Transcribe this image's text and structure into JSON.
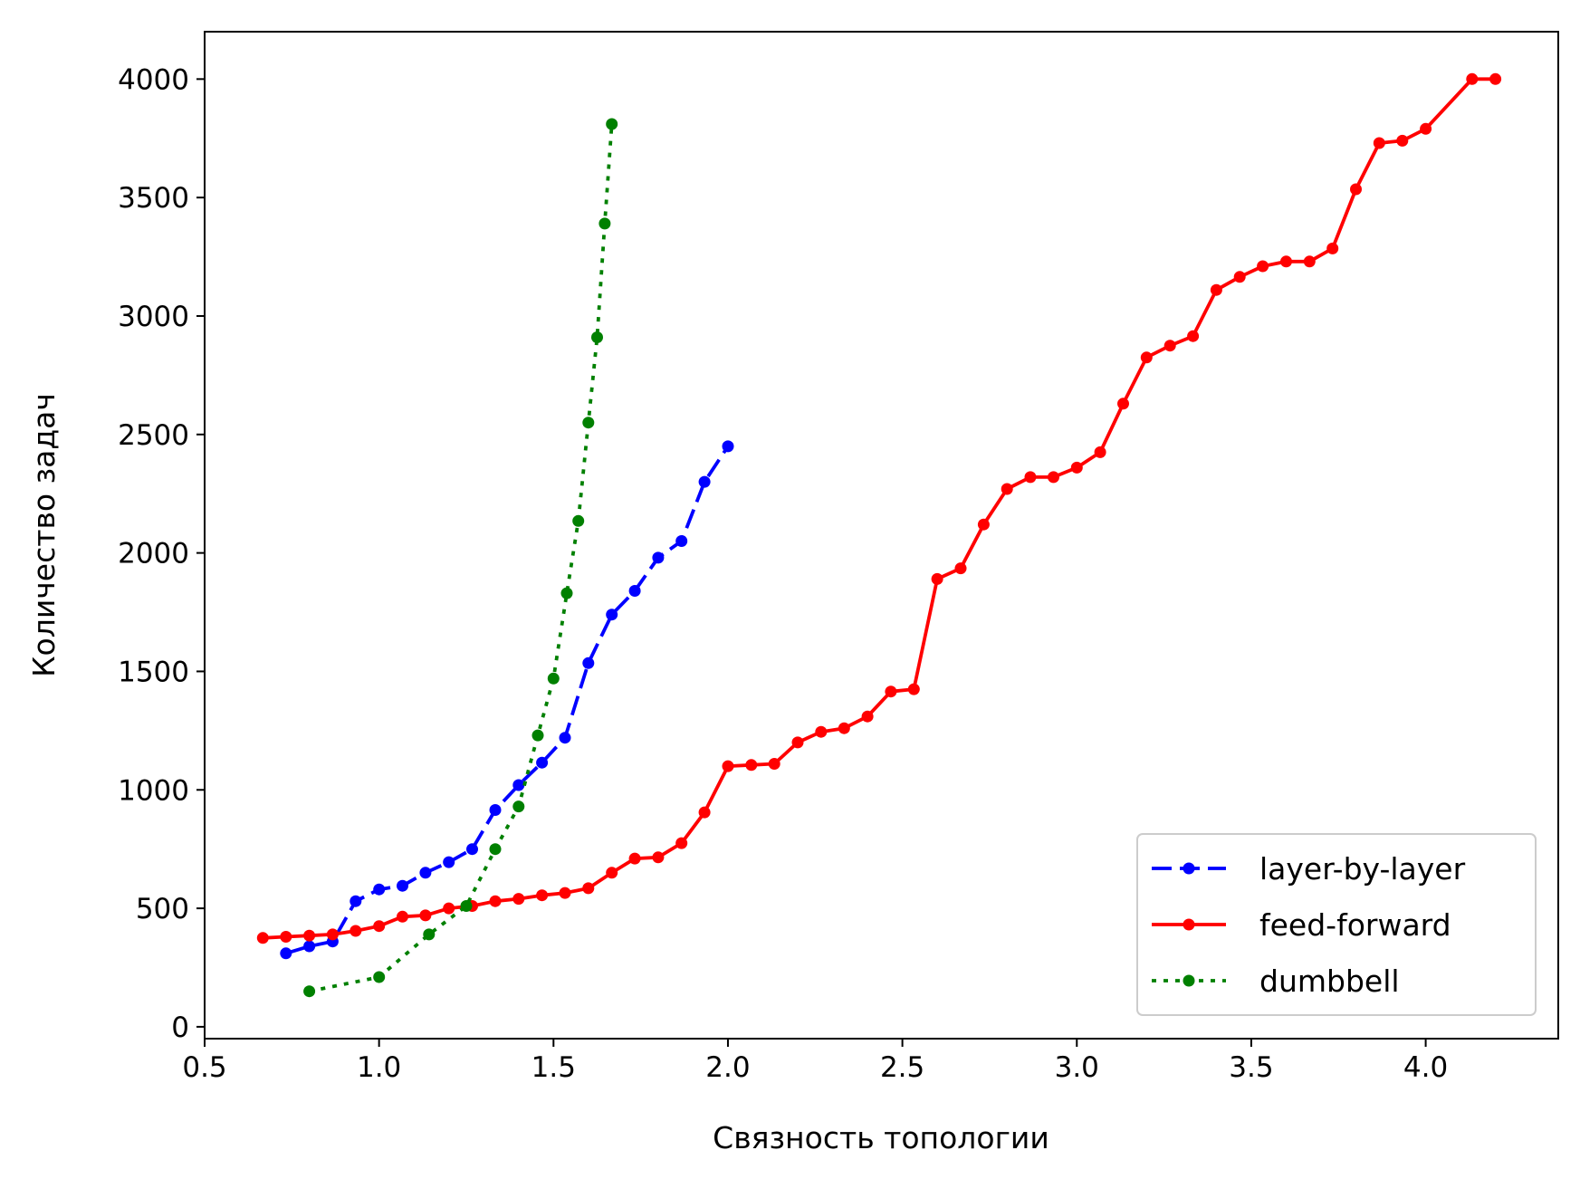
{
  "chart_data": {
    "type": "line",
    "title": "",
    "xlabel": "Связность топологии",
    "ylabel": "Количество задач",
    "xlim": [
      0.5,
      4.38
    ],
    "ylim": [
      -50,
      4200
    ],
    "xticks": [
      0.5,
      1.0,
      1.5,
      2.0,
      2.5,
      3.0,
      3.5,
      4.0
    ],
    "xtick_labels": [
      "0.5",
      "1.0",
      "1.5",
      "2.0",
      "2.5",
      "3.0",
      "3.5",
      "4.0"
    ],
    "yticks": [
      0,
      500,
      1000,
      1500,
      2000,
      2500,
      3000,
      3500,
      4000
    ],
    "ytick_labels": [
      "0",
      "500",
      "1000",
      "1500",
      "2000",
      "2500",
      "3000",
      "3500",
      "4000"
    ],
    "grid": false,
    "legend_position": "lower-right",
    "series": [
      {
        "name": "layer-by-layer",
        "color": "#0000ff",
        "linestyle": "dashed",
        "x": [
          0.733,
          0.8,
          0.867,
          0.933,
          1.0,
          1.067,
          1.133,
          1.2,
          1.267,
          1.333,
          1.4,
          1.467,
          1.533,
          1.6,
          1.667,
          1.733,
          1.8,
          1.867,
          1.933,
          2.0
        ],
        "y": [
          310,
          340,
          360,
          530,
          580,
          595,
          650,
          695,
          750,
          915,
          1020,
          1115,
          1220,
          1535,
          1740,
          1840,
          1980,
          2050,
          2300,
          2450
        ]
      },
      {
        "name": "feed-forward",
        "color": "#ff0000",
        "linestyle": "solid",
        "x": [
          0.667,
          0.733,
          0.8,
          0.867,
          0.933,
          1.0,
          1.067,
          1.133,
          1.2,
          1.267,
          1.333,
          1.4,
          1.467,
          1.533,
          1.6,
          1.667,
          1.733,
          1.8,
          1.867,
          1.933,
          2.0,
          2.067,
          2.133,
          2.2,
          2.267,
          2.333,
          2.4,
          2.467,
          2.533,
          2.6,
          2.667,
          2.733,
          2.8,
          2.867,
          2.933,
          3.0,
          3.067,
          3.133,
          3.2,
          3.267,
          3.333,
          3.4,
          3.467,
          3.533,
          3.6,
          3.667,
          3.733,
          3.8,
          3.867,
          3.933,
          4.0,
          4.133,
          4.2
        ],
        "y": [
          375,
          380,
          385,
          390,
          405,
          425,
          465,
          470,
          500,
          510,
          530,
          540,
          555,
          565,
          585,
          650,
          710,
          715,
          775,
          905,
          1100,
          1105,
          1110,
          1200,
          1245,
          1260,
          1310,
          1415,
          1425,
          1890,
          1935,
          2120,
          2270,
          2320,
          2320,
          2360,
          2425,
          2630,
          2825,
          2875,
          2915,
          3110,
          3165,
          3210,
          3230,
          3230,
          3285,
          3535,
          3730,
          3740,
          3790,
          4000,
          4000
        ]
      },
      {
        "name": "dumbbell",
        "color": "#008000",
        "linestyle": "dotted",
        "x": [
          0.8,
          1.0,
          1.143,
          1.25,
          1.333,
          1.4,
          1.455,
          1.5,
          1.538,
          1.571,
          1.6,
          1.625,
          1.647,
          1.667
        ],
        "y": [
          150,
          210,
          390,
          510,
          750,
          930,
          1230,
          1470,
          1830,
          2135,
          2550,
          2910,
          3390,
          3810
        ]
      }
    ]
  }
}
